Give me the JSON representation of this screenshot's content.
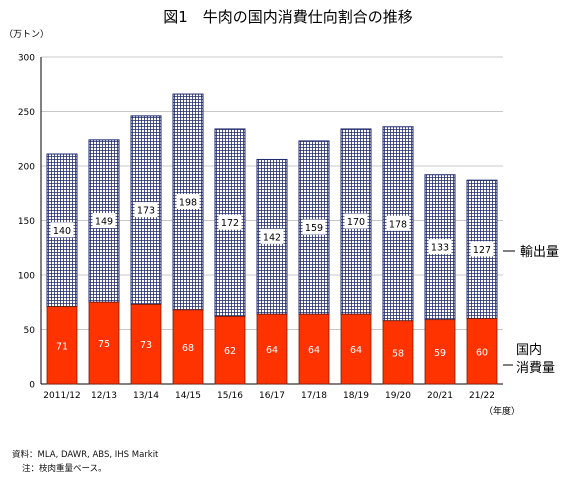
{
  "chart_data": {
    "type": "bar",
    "stacked": true,
    "title": "図1　牛肉の国内消費仕向割合の推移",
    "y_unit": "（万トン）",
    "x_unit": "（年度）",
    "ylim": [
      0,
      300
    ],
    "y_ticks": [
      0,
      50,
      100,
      150,
      200,
      250,
      300
    ],
    "grid": true,
    "categories": [
      "2011/12",
      "12/13",
      "13/14",
      "14/15",
      "15/16",
      "16/17",
      "17/18",
      "18/19",
      "19/20",
      "20/21",
      "21/22"
    ],
    "series": [
      {
        "name": "国内消費量",
        "color": "#ff3300",
        "values": [
          71,
          75,
          73,
          68,
          62,
          64,
          64,
          64,
          58,
          59,
          60
        ]
      },
      {
        "name": "輸出量",
        "color": "#1f2a6e",
        "pattern": "grid",
        "values": [
          140,
          149,
          173,
          198,
          172,
          142,
          159,
          170,
          178,
          133,
          127
        ]
      }
    ],
    "legend": [
      {
        "label": "輸出量"
      },
      {
        "label_lines": [
          "国内",
          "消費量"
        ]
      }
    ]
  },
  "footnotes": {
    "source": "資料：MLA, DAWR, ABS, IHS Markit",
    "note": "注：枝肉重量ベース。"
  }
}
